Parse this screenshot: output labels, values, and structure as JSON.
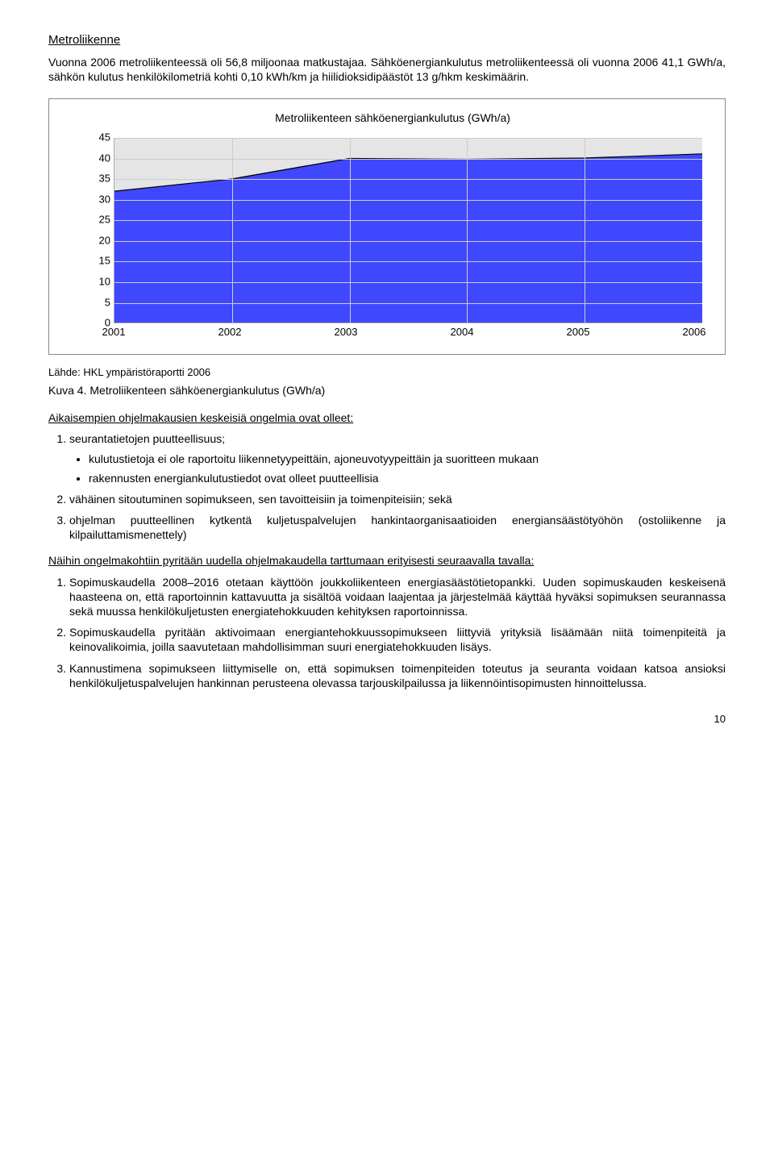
{
  "title_section": "Metroliikenne",
  "intro_p1": "Vuonna 2006 metroliikenteessä oli 56,8 miljoonaa matkustajaa. Sähköenergiankulutus metroliikenteessä oli vuonna 2006 41,1 GWh/a, sähkön kulutus henkilökilometriä kohti 0,10 kWh/km ja hiilidioksidipäästöt 13 g/hkm keskimäärin.",
  "chart": {
    "title": "Metroliikenteen sähköenergiankulutus (GWh/a)",
    "years": [
      "2001",
      "2002",
      "2003",
      "2004",
      "2005",
      "2006"
    ],
    "values": [
      32,
      35,
      40,
      39.8,
      40.1,
      41.1
    ],
    "ymin": 0,
    "ymax": 45,
    "ystep": 5,
    "fill_color": "#3f48ff",
    "bg_fill": "#e5e5e5",
    "line_color": "#000000",
    "grid_color": "#cccccc"
  },
  "caption_source": "Lähde: HKL ympäristöraportti 2006",
  "kuva_label": "Kuva 4.",
  "kuva_text": " Metroliikenteen sähköenergiankulutus (GWh/a)",
  "subhead1": "Aikaisempien ohjelmakausien keskeisiä ongelmia ovat olleet:",
  "problems": {
    "p1": "seurantatietojen puutteellisuus;",
    "p1_b1": "kulutustietoja ei ole raportoitu liikennetyypeittäin, ajoneuvotyypeittäin ja suoritteen mukaan",
    "p1_b2": "rakennusten energiankulutustiedot ovat olleet puutteellisia",
    "p2": "vähäinen sitoutuminen sopimukseen, sen tavoitteisiin ja toimenpiteisiin; sekä",
    "p3": "ohjelman puutteellinen kytkentä kuljetuspalvelujen hankintaorganisaatioiden energiansäästötyöhön (ostoliikenne ja kilpailuttamismenettely)"
  },
  "subhead2": "Näihin ongelmakohtiin pyritään uudella ohjelmakaudella tarttumaan erityisesti seuraavalla tavalla:",
  "solutions": {
    "s1": "Sopimuskaudella 2008–2016 otetaan käyttöön joukkoliikenteen energiasäästötietopankki. Uuden sopimuskauden keskeisenä haasteena on, että raportoinnin kattavuutta ja sisältöä voidaan laajentaa ja järjestelmää käyttää hyväksi sopimuksen seurannassa sekä muussa henkilökuljetusten energiatehokkuuden kehityksen raportoinnissa.",
    "s2": "Sopimuskaudella pyritään aktivoimaan energiantehokkuussopimukseen liittyviä yrityksiä lisäämään niitä toimenpiteitä ja keinovalikoimia, joilla saavutetaan mahdollisimman suuri energiatehokkuuden lisäys.",
    "s3": "Kannustimena sopimukseen liittymiselle on, että sopimuksen toimenpiteiden toteutus ja seuranta voidaan katsoa ansioksi henkilökuljetuspalvelujen hankinnan perusteena olevassa tarjouskilpailussa ja liikennöintisopimusten hinnoittelussa."
  },
  "page_number": "10"
}
